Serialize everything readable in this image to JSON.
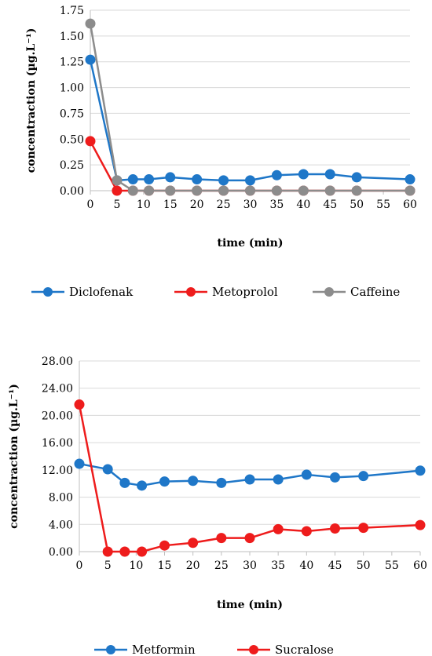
{
  "chart_data": [
    {
      "type": "line",
      "xlabel": "time (min)",
      "ylabel": "concentraction (µg.L⁻¹)",
      "x": [
        0,
        5,
        8,
        11,
        15,
        20,
        25,
        30,
        35,
        40,
        45,
        50,
        60
      ],
      "xticks": [
        0,
        5,
        10,
        15,
        20,
        25,
        30,
        35,
        40,
        45,
        50,
        55,
        60
      ],
      "xlim": [
        0,
        60
      ],
      "ylim": [
        0,
        1.75
      ],
      "yticks": [
        "0.00",
        "0.25",
        "0.50",
        "0.75",
        "1.00",
        "1.25",
        "1.50",
        "1.75"
      ],
      "grid": true,
      "legend": "bottom",
      "series": [
        {
          "name": "Diclofenak",
          "color": "#1f77c8",
          "values": [
            1.27,
            0.1,
            0.11,
            0.11,
            0.13,
            0.11,
            0.1,
            0.1,
            0.15,
            0.16,
            0.16,
            0.13,
            0.11
          ]
        },
        {
          "name": "Metoprolol",
          "color": "#ee1c1c",
          "values": [
            0.48,
            0.0,
            0.0,
            0.0,
            0.0,
            0.0,
            0.0,
            0.0,
            0.0,
            0.0,
            0.0,
            0.0,
            0.0
          ]
        },
        {
          "name": "Caffeine",
          "color": "#8c8c8c",
          "values": [
            1.62,
            0.1,
            0.0,
            0.0,
            0.0,
            0.0,
            0.0,
            0.0,
            0.0,
            0.0,
            0.0,
            0.0,
            0.0
          ]
        }
      ]
    },
    {
      "type": "line",
      "xlabel": "time (min)",
      "ylabel": "concentraction (µg.L⁻¹)",
      "x": [
        0,
        5,
        8,
        11,
        15,
        20,
        25,
        30,
        35,
        40,
        45,
        50,
        60
      ],
      "xticks": [
        0,
        5,
        10,
        15,
        20,
        25,
        30,
        35,
        40,
        45,
        50,
        55,
        60
      ],
      "xlim": [
        0,
        60
      ],
      "ylim": [
        0,
        28
      ],
      "yticks": [
        "0.00",
        "4.00",
        "8.00",
        "12.00",
        "16.00",
        "20.00",
        "24.00",
        "28.00"
      ],
      "grid": true,
      "legend": "bottom",
      "series": [
        {
          "name": "Metformin",
          "color": "#1f77c8",
          "values": [
            12.9,
            12.1,
            10.1,
            9.7,
            10.3,
            10.4,
            10.1,
            10.6,
            10.6,
            11.3,
            10.9,
            11.1,
            11.9
          ]
        },
        {
          "name": "Sucralose",
          "color": "#ee1c1c",
          "values": [
            21.6,
            0.0,
            0.0,
            0.0,
            0.9,
            1.3,
            2.0,
            2.0,
            3.3,
            3.0,
            3.4,
            3.5,
            3.9
          ]
        }
      ]
    }
  ]
}
